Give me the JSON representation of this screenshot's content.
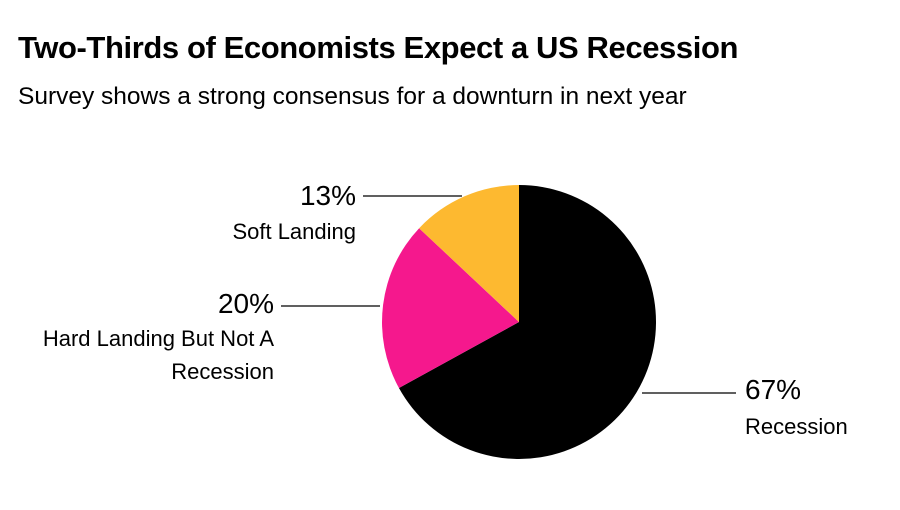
{
  "chart_data": {
    "type": "pie",
    "title": "Two-Thirds of Economists Expect a US Recession",
    "subtitle": "Survey shows a strong consensus for a downturn in next year",
    "slices": [
      {
        "name": "Recession",
        "label_lines": [
          "Recession"
        ],
        "value": 67,
        "value_label": "67%",
        "color": "#000000"
      },
      {
        "name": "Hard Landing But Not A Recession",
        "label_lines": [
          "Hard Landing But Not A",
          "Recession"
        ],
        "value": 20,
        "value_label": "20%",
        "color": "#f5188d"
      },
      {
        "name": "Soft Landing",
        "label_lines": [
          "Soft Landing"
        ],
        "value": 13,
        "value_label": "13%",
        "color": "#fdb930"
      }
    ]
  }
}
